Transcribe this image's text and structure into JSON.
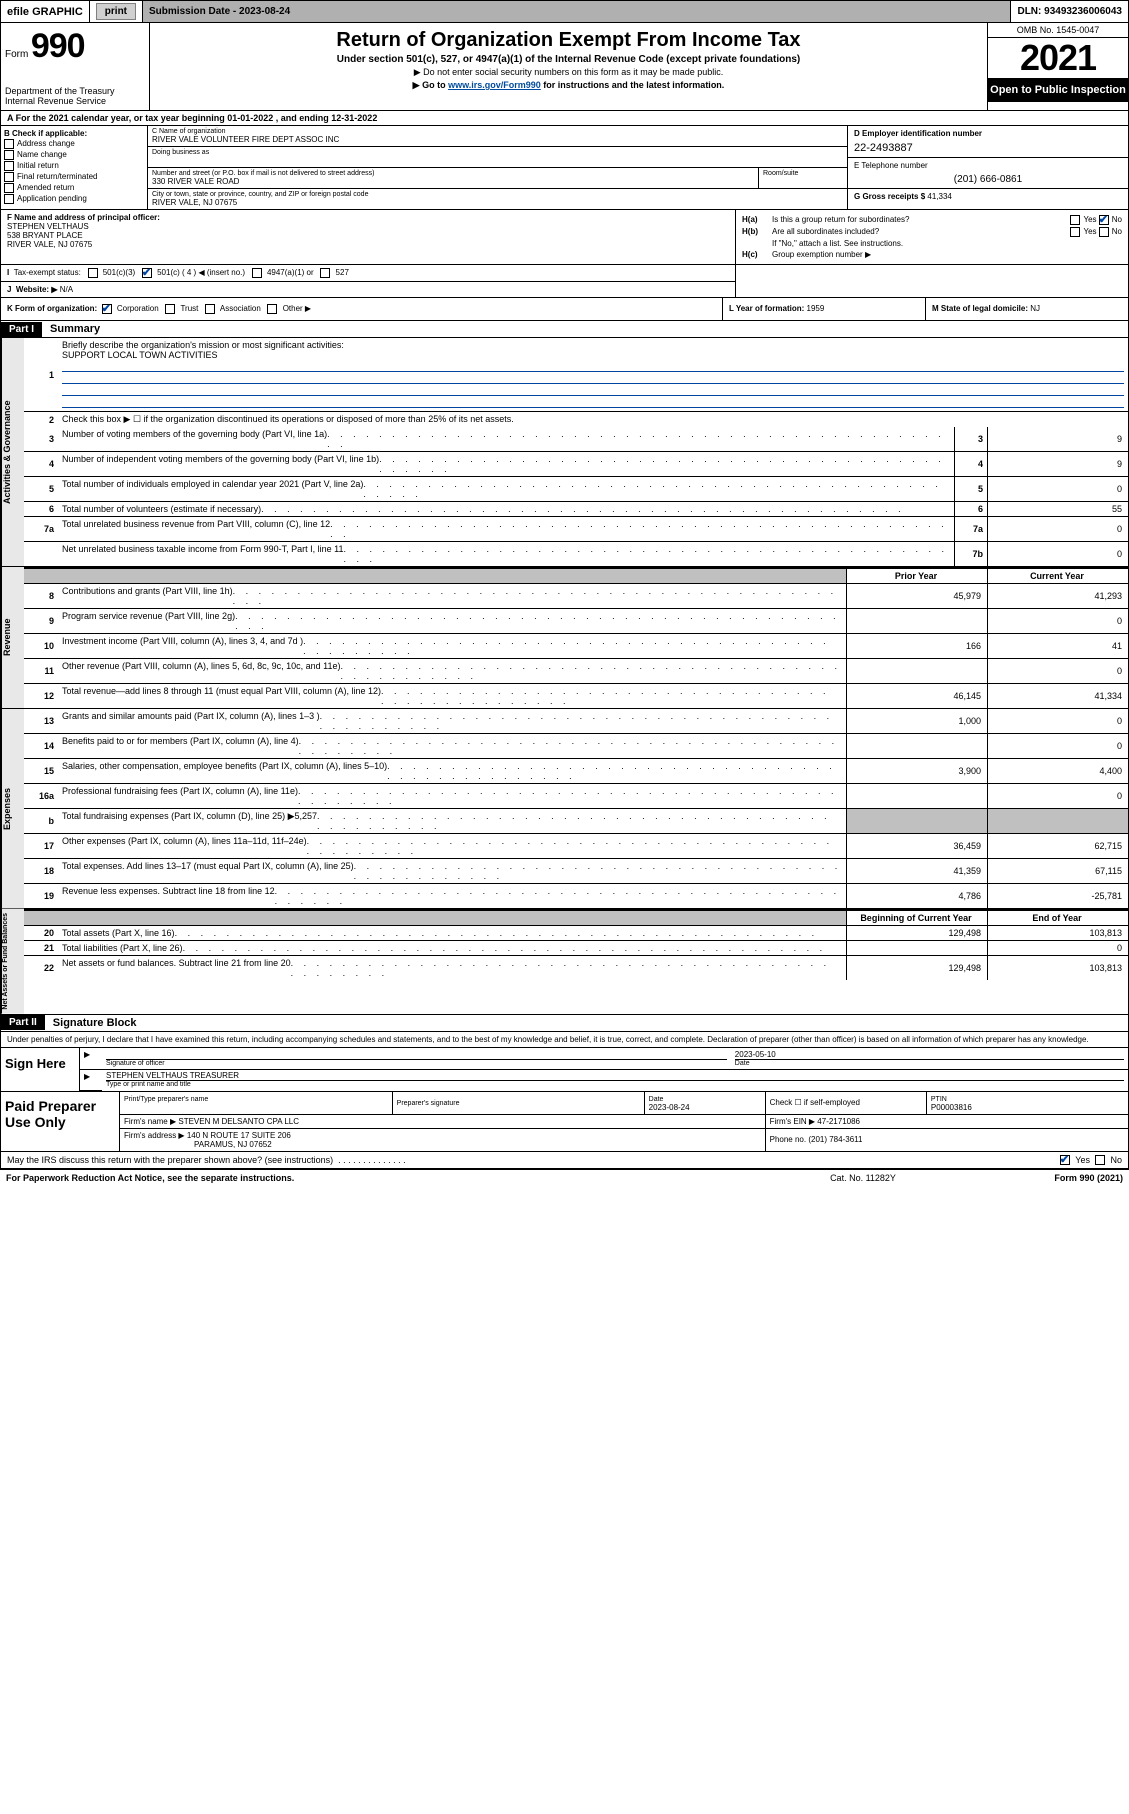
{
  "topbar": {
    "efile_label": "efile GRAPHIC",
    "print_btn": "print",
    "submission_label": "Submission Date - 2023-08-24",
    "dln": "DLN: 93493236006043"
  },
  "header": {
    "form_prefix": "Form",
    "form_number": "990",
    "dept": "Department of the Treasury\nInternal Revenue Service",
    "title": "Return of Organization Exempt From Income Tax",
    "subtitle": "Under section 501(c), 527, or 4947(a)(1) of the Internal Revenue Code (except private foundations)",
    "note1": "▶ Do not enter social security numbers on this form as it may be made public.",
    "note2_pre": "▶ Go to ",
    "note2_link": "www.irs.gov/Form990",
    "note2_post": " for instructions and the latest information.",
    "omb": "OMB No. 1545-0047",
    "year": "2021",
    "inspection": "Open to Public Inspection"
  },
  "rowA": "A For the 2021 calendar year, or tax year beginning 01-01-2022   , and ending 12-31-2022",
  "boxB": {
    "label": "B Check if applicable:",
    "opts": [
      "Address change",
      "Name change",
      "Initial return",
      "Final return/terminated",
      "Amended return",
      "Application pending"
    ]
  },
  "boxC": {
    "name_label": "C Name of organization",
    "name": "RIVER VALE VOLUNTEER FIRE DEPT ASSOC INC",
    "dba_label": "Doing business as",
    "street_label": "Number and street (or P.O. box if mail is not delivered to street address)",
    "street": "330 RIVER VALE ROAD",
    "suite_label": "Room/suite",
    "city_label": "City or town, state or province, country, and ZIP or foreign postal code",
    "city": "RIVER VALE, NJ  07675"
  },
  "boxD": {
    "label": "D Employer identification number",
    "value": "22-2493887"
  },
  "boxE": {
    "label": "E Telephone number",
    "value": "(201) 666-0861"
  },
  "boxG": {
    "label": "G Gross receipts $",
    "value": "41,334"
  },
  "boxF": {
    "label": "F Name and address of principal officer:",
    "name": "STEPHEN VELTHAUS",
    "street": "538 BRYANT PLACE",
    "city": "RIVER VALE, NJ  07675"
  },
  "boxH": {
    "a_label": "H(a)",
    "a_text": "Is this a group return for subordinates?",
    "b_label": "H(b)",
    "b_text": "Are all subordinates included?",
    "note": "If \"No,\" attach a list. See instructions.",
    "c_label": "H(c)",
    "c_text": "Group exemption number ▶",
    "yes": "Yes",
    "no": "No"
  },
  "boxI": {
    "label": "I",
    "text": "Tax-exempt status:",
    "opt1": "501(c)(3)",
    "opt2": "501(c) ( 4 ) ◀ (insert no.)",
    "opt3": "4947(a)(1) or",
    "opt4": "527"
  },
  "boxJ": {
    "label": "J",
    "text": "Website: ▶",
    "value": "N/A"
  },
  "boxK": {
    "label": "K Form of organization:",
    "opts": [
      "Corporation",
      "Trust",
      "Association",
      "Other ▶"
    ]
  },
  "boxL": {
    "label": "L Year of formation:",
    "value": "1959"
  },
  "boxM": {
    "label": "M State of legal domicile:",
    "value": "NJ"
  },
  "part1": {
    "header": "Part I",
    "title": "Summary",
    "line1_label": "Briefly describe the organization's mission or most significant activities:",
    "line1_value": "SUPPORT LOCAL TOWN ACTIVITIES",
    "line2": "Check this box ▶ ☐  if the organization discontinued its operations or disposed of more than 25% of its net assets.",
    "sidebar_gov": "Activities & Governance",
    "sidebar_rev": "Revenue",
    "sidebar_exp": "Expenses",
    "sidebar_net": "Net Assets or Fund Balances",
    "prior_year": "Prior Year",
    "current_year": "Current Year",
    "boy": "Beginning of Current Year",
    "eoy": "End of Year",
    "rows_gov": [
      {
        "n": "3",
        "d": "Number of voting members of the governing body (Part VI, line 1a)",
        "k": "3",
        "v": "9"
      },
      {
        "n": "4",
        "d": "Number of independent voting members of the governing body (Part VI, line 1b)",
        "k": "4",
        "v": "9"
      },
      {
        "n": "5",
        "d": "Total number of individuals employed in calendar year 2021 (Part V, line 2a)",
        "k": "5",
        "v": "0"
      },
      {
        "n": "6",
        "d": "Total number of volunteers (estimate if necessary)",
        "k": "6",
        "v": "55"
      },
      {
        "n": "7a",
        "d": "Total unrelated business revenue from Part VIII, column (C), line 12",
        "k": "7a",
        "v": "0"
      },
      {
        "n": "",
        "d": "Net unrelated business taxable income from Form 990-T, Part I, line 11",
        "k": "7b",
        "v": "0"
      }
    ],
    "rows_rev": [
      {
        "n": "8",
        "d": "Contributions and grants (Part VIII, line 1h)",
        "p": "45,979",
        "c": "41,293"
      },
      {
        "n": "9",
        "d": "Program service revenue (Part VIII, line 2g)",
        "p": "",
        "c": "0"
      },
      {
        "n": "10",
        "d": "Investment income (Part VIII, column (A), lines 3, 4, and 7d )",
        "p": "166",
        "c": "41"
      },
      {
        "n": "11",
        "d": "Other revenue (Part VIII, column (A), lines 5, 6d, 8c, 9c, 10c, and 11e)",
        "p": "",
        "c": "0"
      },
      {
        "n": "12",
        "d": "Total revenue—add lines 8 through 11 (must equal Part VIII, column (A), line 12)",
        "p": "46,145",
        "c": "41,334"
      }
    ],
    "rows_exp": [
      {
        "n": "13",
        "d": "Grants and similar amounts paid (Part IX, column (A), lines 1–3 )",
        "p": "1,000",
        "c": "0"
      },
      {
        "n": "14",
        "d": "Benefits paid to or for members (Part IX, column (A), line 4)",
        "p": "",
        "c": "0"
      },
      {
        "n": "15",
        "d": "Salaries, other compensation, employee benefits (Part IX, column (A), lines 5–10)",
        "p": "3,900",
        "c": "4,400"
      },
      {
        "n": "16a",
        "d": "Professional fundraising fees (Part IX, column (A), line 11e)",
        "p": "",
        "c": "0"
      },
      {
        "n": "b",
        "d": "Total fundraising expenses (Part IX, column (D), line 25) ▶5,257",
        "p": "GREY",
        "c": "GREY"
      },
      {
        "n": "17",
        "d": "Other expenses (Part IX, column (A), lines 11a–11d, 11f–24e)",
        "p": "36,459",
        "c": "62,715"
      },
      {
        "n": "18",
        "d": "Total expenses. Add lines 13–17 (must equal Part IX, column (A), line 25)",
        "p": "41,359",
        "c": "67,115"
      },
      {
        "n": "19",
        "d": "Revenue less expenses. Subtract line 18 from line 12",
        "p": "4,786",
        "c": "-25,781"
      }
    ],
    "rows_net": [
      {
        "n": "20",
        "d": "Total assets (Part X, line 16)",
        "p": "129,498",
        "c": "103,813"
      },
      {
        "n": "21",
        "d": "Total liabilities (Part X, line 26)",
        "p": "",
        "c": "0"
      },
      {
        "n": "22",
        "d": "Net assets or fund balances. Subtract line 21 from line 20",
        "p": "129,498",
        "c": "103,813"
      }
    ]
  },
  "part2": {
    "header": "Part II",
    "title": "Signature Block",
    "intro": "Under penalties of perjury, I declare that I have examined this return, including accompanying schedules and statements, and to the best of my knowledge and belief, it is true, correct, and complete. Declaration of preparer (other than officer) is based on all information of which preparer has any knowledge.",
    "sign_here": "Sign Here",
    "sig_officer": "Signature of officer",
    "sig_date": "Date",
    "sig_date_val": "2023-05-10",
    "officer_name": "STEPHEN VELTHAUS TREASURER",
    "type_name": "Type or print name and title",
    "paid": "Paid Preparer Use Only",
    "prep_name_lbl": "Print/Type preparer's name",
    "prep_sig_lbl": "Preparer's signature",
    "prep_date_lbl": "Date",
    "prep_date_val": "2023-08-24",
    "check_if": "Check ☐ if self-employed",
    "ptin_lbl": "PTIN",
    "ptin_val": "P00003816",
    "firm_name_lbl": "Firm's name    ▶",
    "firm_name": "STEVEN M DELSANTO CPA LLC",
    "firm_ein_lbl": "Firm's EIN ▶",
    "firm_ein": "47-2171086",
    "firm_addr_lbl": "Firm's address ▶",
    "firm_addr1": "140 N ROUTE 17 SUITE 206",
    "firm_addr2": "PARAMUS, NJ  07652",
    "phone_lbl": "Phone no.",
    "phone_val": "(201) 784-3611",
    "discuss": "May the IRS discuss this return with the preparer shown above? (see instructions)",
    "yes": "Yes",
    "no": "No"
  },
  "footer": {
    "pra": "For Paperwork Reduction Act Notice, see the separate instructions.",
    "cat": "Cat. No. 11282Y",
    "form": "Form 990 (2021)"
  }
}
